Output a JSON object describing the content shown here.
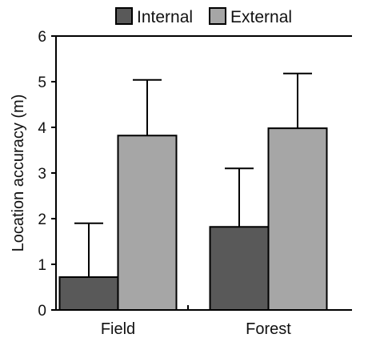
{
  "chart_data": {
    "type": "bar",
    "title": "",
    "xlabel": "",
    "ylabel": "Location accuracy (m)",
    "categories": [
      "Field",
      "Forest"
    ],
    "ylim": [
      0,
      6
    ],
    "yticks": [
      0,
      1,
      2,
      3,
      4,
      5,
      6
    ],
    "grid": false,
    "legend_position": "top",
    "error_bars": "upper",
    "series": [
      {
        "name": "Internal",
        "color": "#595959",
        "values": [
          0.72,
          1.82
        ],
        "errors": [
          1.18,
          1.28
        ]
      },
      {
        "name": "External",
        "color": "#a6a6a6",
        "values": [
          3.82,
          3.98
        ],
        "errors": [
          1.22,
          1.2
        ]
      }
    ]
  }
}
